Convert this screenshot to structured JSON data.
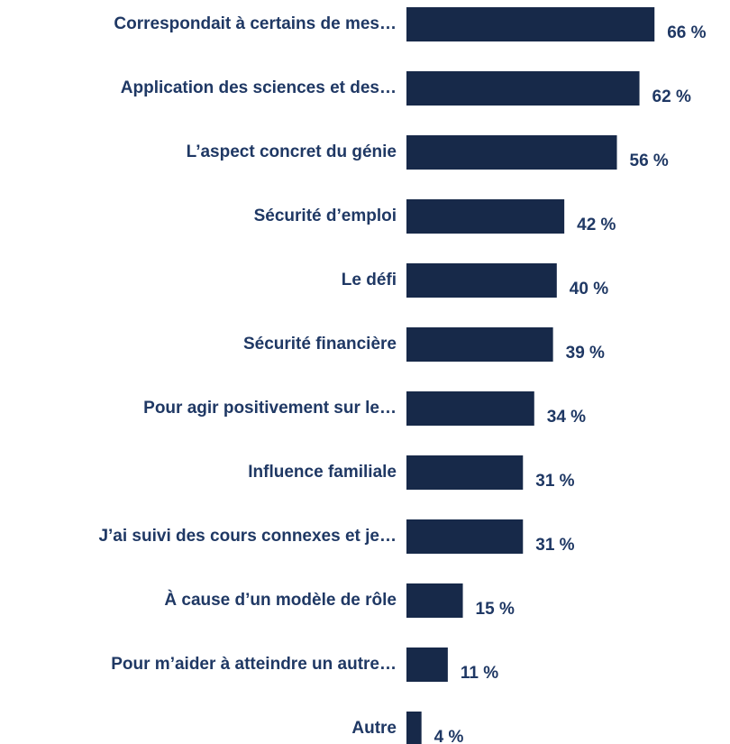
{
  "chart_data": {
    "type": "bar",
    "orientation": "horizontal",
    "color": "#172949",
    "categories": [
      "Correspondait à certains de mes…",
      "Application des sciences et des…",
      "L’aspect concret du génie",
      "Sécurité d’emploi",
      "Le défi",
      "Sécurité financière",
      "Pour agir positivement sur le…",
      "Influence familiale",
      "J’ai suivi des cours connexes et je…",
      "À cause d’un modèle de rôle",
      "Pour m’aider à atteindre un autre…",
      "Autre"
    ],
    "values": [
      66,
      62,
      56,
      42,
      40,
      39,
      34,
      31,
      31,
      15,
      11,
      4
    ],
    "value_labels": [
      "66 %",
      "62 %",
      "56 %",
      "42 %",
      "40 %",
      "39 %",
      "34 %",
      "31 %",
      "31 %",
      "15 %",
      "11 %",
      "4 %"
    ]
  }
}
